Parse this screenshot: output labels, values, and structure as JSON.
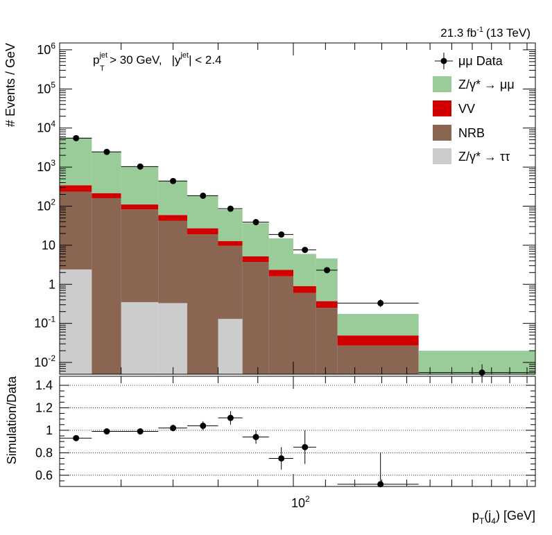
{
  "chart_data": [
    {
      "type": "bar",
      "subtype": "stacked-histogram",
      "luminosity_label": "21.3 fb",
      "luminosity_exponent": "-1",
      "energy_label": "(13 TeV)",
      "cut_text": {
        "pt_var": "p",
        "pt_sub": "T",
        "pt_sup": "jet",
        "pt_cut": "> 30 GeV,",
        "y_var": "|y",
        "y_sup": "jet",
        "y_cut": "| < 2.4"
      },
      "ylabel": "# Events / GeV",
      "yscale": "log",
      "ylim": [
        0.005,
        1500000
      ],
      "xscale": "log",
      "xlim": [
        50,
        205
      ],
      "bin_edges": [
        50,
        55,
        60,
        67,
        73,
        80,
        86,
        93,
        100,
        107,
        114,
        145,
        205
      ],
      "y_ticks": [
        {
          "value": 0.01,
          "base": "10",
          "exp": "-2"
        },
        {
          "value": 0.1,
          "base": "10",
          "exp": "-1"
        },
        {
          "value": 1,
          "base": "1",
          "exp": ""
        },
        {
          "value": 10,
          "base": "10",
          "exp": ""
        },
        {
          "value": 100,
          "base": "10",
          "exp": "2"
        },
        {
          "value": 1000,
          "base": "10",
          "exp": "3"
        },
        {
          "value": 10000,
          "base": "10",
          "exp": "4"
        },
        {
          "value": 100000,
          "base": "10",
          "exp": "5"
        },
        {
          "value": 1000000,
          "base": "10",
          "exp": "6"
        }
      ],
      "series": [
        {
          "name": "Z/γ* → ττ",
          "color": "#cccccc",
          "values": [
            2.4,
            0,
            0.35,
            0.33,
            0,
            0.13,
            0,
            0,
            0,
            0,
            0,
            0
          ]
        },
        {
          "name": "NRB",
          "color": "#8a6552",
          "values": [
            230,
            160,
            82,
            42,
            19,
            9.5,
            3.7,
            1.6,
            0.6,
            0.25,
            0.027,
            0
          ]
        },
        {
          "name": "VV",
          "color": "#d10000",
          "values": [
            110,
            55,
            28,
            17,
            8,
            3.2,
            1.5,
            0.75,
            0.3,
            0.12,
            0.022,
            0
          ]
        },
        {
          "name": "Z/γ* → μμ",
          "color": "#99cc99",
          "values": [
            5300,
            2250,
            900,
            390,
            160,
            69,
            32,
            12.6,
            5.1,
            4.2,
            0.125,
            0.02
          ]
        }
      ],
      "data": {
        "name": "μμ Data",
        "x": [
          52.5,
          57.5,
          63.5,
          70,
          76.5,
          83,
          89.5,
          96.5,
          103.5,
          110.5,
          129.5,
          175
        ],
        "x_err": [
          [
            50,
            55
          ],
          [
            55,
            60
          ],
          [
            60,
            67
          ],
          [
            67,
            73
          ],
          [
            73,
            80
          ],
          [
            80,
            86
          ],
          [
            86,
            93
          ],
          [
            93,
            100
          ],
          [
            100,
            107
          ],
          [
            107,
            114
          ],
          [
            114,
            145
          ],
          [
            145,
            205
          ]
        ],
        "y": [
          5500,
          2450,
          1030,
          440,
          185,
          86,
          39,
          18.8,
          7.6,
          2.3,
          0.33,
          0.0055
        ],
        "y_err": [
          [
            5300,
            5700
          ],
          [
            2380,
            2520
          ],
          [
            1000,
            1060
          ],
          [
            425,
            455
          ],
          [
            178,
            192
          ],
          [
            82,
            90
          ],
          [
            37,
            41
          ],
          [
            17.5,
            20.2
          ],
          [
            6.8,
            8.4
          ],
          [
            2.0,
            2.7
          ],
          [
            0.26,
            0.41
          ],
          [
            0.003,
            0.009
          ]
        ]
      },
      "legend": {
        "placement": "top-right",
        "entries": [
          {
            "label": "μμ Data",
            "kind": "marker"
          },
          {
            "label": "Z/γ* → μμ",
            "kind": "box",
            "color": "#99cc99"
          },
          {
            "label": "VV",
            "kind": "box",
            "color": "#d10000"
          },
          {
            "label": "NRB",
            "kind": "box",
            "color": "#8a6552"
          },
          {
            "label": "Z/γ* → ττ",
            "kind": "box",
            "color": "#cccccc"
          }
        ]
      }
    },
    {
      "type": "scatter",
      "panel": "ratio",
      "ylabel": "Simulation/Data",
      "xlabel": "p_T(j_4) [GeV]",
      "xlabel_parts": {
        "main": "p",
        "sub1": "T",
        "mid": "(j",
        "sub2": "4",
        "end": ") [GeV]"
      },
      "xscale": "log",
      "xlim": [
        50,
        205
      ],
      "x_tick_label": {
        "value": 100,
        "base": "10",
        "exp": "2"
      },
      "ylim": [
        0.5,
        1.48
      ],
      "y_ticks": [
        0.6,
        0.8,
        1,
        1.2,
        1.4
      ],
      "y_tick_labels": [
        "0.6",
        "0.8",
        "1",
        "1.2",
        "1.4"
      ],
      "grid": "horizontal dotted",
      "x": [
        52.5,
        57.5,
        63.5,
        70,
        76.5,
        83,
        89.5,
        96.5,
        103.5,
        129.5
      ],
      "x_err": [
        [
          50,
          55
        ],
        [
          55,
          60
        ],
        [
          60,
          67
        ],
        [
          67,
          73
        ],
        [
          73,
          80
        ],
        [
          80,
          86
        ],
        [
          86,
          93
        ],
        [
          93,
          100
        ],
        [
          100,
          107
        ],
        [
          114,
          145
        ]
      ],
      "y": [
        0.93,
        0.99,
        0.99,
        1.02,
        1.04,
        1.11,
        0.94,
        0.75,
        0.85,
        0.52
      ],
      "y_err": [
        [
          0.91,
          0.95
        ],
        [
          0.975,
          1.005
        ],
        [
          0.975,
          1.005
        ],
        [
          0.99,
          1.05
        ],
        [
          1.0,
          1.08
        ],
        [
          1.05,
          1.17
        ],
        [
          0.88,
          1.0
        ],
        [
          0.65,
          0.85
        ],
        [
          0.7,
          1.0
        ],
        [
          0.31,
          0.8
        ]
      ]
    }
  ]
}
